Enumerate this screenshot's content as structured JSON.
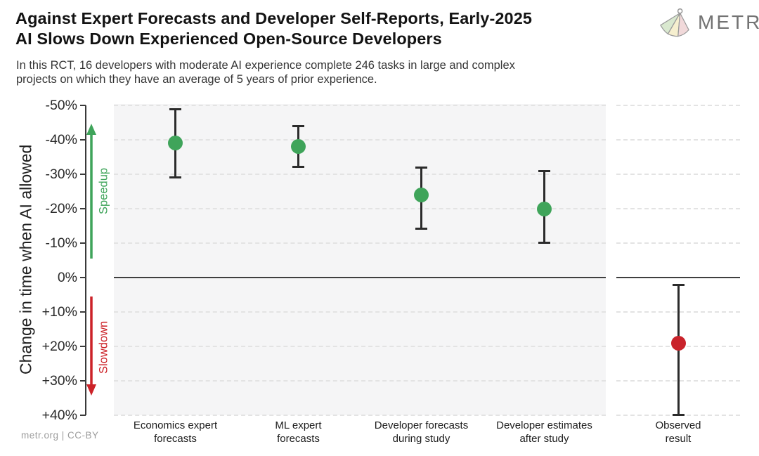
{
  "header": {
    "title": "Against Expert Forecasts and Developer Self-Reports, Early-2025\nAI Slows Down Experienced Open-Source Developers",
    "subtitle": "In this RCT, 16 developers with moderate AI experience complete 246 tasks in large and complex\nprojects on which they have an average of 5 years of prior experience.",
    "brand": "METR"
  },
  "footer": {
    "credit": "metr.org | CC-BY"
  },
  "colors": {
    "forecast_green": "#3fa45a",
    "observed_red": "#c9232b",
    "error_bar": "#2b2b2b",
    "axis": "#3a3a3a",
    "panel_bg": "#f5f5f6",
    "grid": "#e3e3e3"
  },
  "chart_data": {
    "type": "scatter",
    "title": "Against Expert Forecasts and Developer Self-Reports, Early-2025 AI Slows Down Experienced Open-Source Developers",
    "ylabel": "Change in time when AI allowed",
    "ylim": [
      -50,
      40
    ],
    "y_axis_inverted": true,
    "grid": "horizontal-dashed",
    "zero_line": true,
    "legend_position": "none",
    "y_ticks": [
      {
        "value": -50,
        "label": "-50%"
      },
      {
        "value": -40,
        "label": "-40%"
      },
      {
        "value": -30,
        "label": "-30%"
      },
      {
        "value": -20,
        "label": "-20%"
      },
      {
        "value": -10,
        "label": "-10%"
      },
      {
        "value": 0,
        "label": "0%"
      },
      {
        "value": 10,
        "label": "+10%"
      },
      {
        "value": 20,
        "label": "+20%"
      },
      {
        "value": 30,
        "label": "+30%"
      },
      {
        "value": 40,
        "label": "+40%"
      }
    ],
    "direction_annotations": [
      {
        "label": "Speedup",
        "direction": "up",
        "color": "#3fa45a"
      },
      {
        "label": "Slowdown",
        "direction": "down",
        "color": "#cc2228"
      }
    ],
    "panels": [
      {
        "name": "forecasts",
        "points": [
          {
            "label": "Economics expert\nforecasts",
            "value": -39,
            "ci": [
              -49,
              -29
            ],
            "color": "#3fa45a"
          },
          {
            "label": "ML expert\nforecasts",
            "value": -38,
            "ci": [
              -44,
              -32
            ],
            "color": "#3fa45a"
          },
          {
            "label": "Developer forecasts\nduring study",
            "value": -24,
            "ci": [
              -32,
              -14
            ],
            "color": "#3fa45a"
          },
          {
            "label": "Developer estimates\nafter study",
            "value": -20,
            "ci": [
              -31,
              -10
            ],
            "color": "#3fa45a"
          }
        ]
      },
      {
        "name": "observed",
        "points": [
          {
            "label": "Observed\nresult",
            "value": 19,
            "ci": [
              2,
              40
            ],
            "color": "#c9232b"
          }
        ]
      }
    ],
    "units": "percent change in task completion time when AI is allowed"
  }
}
